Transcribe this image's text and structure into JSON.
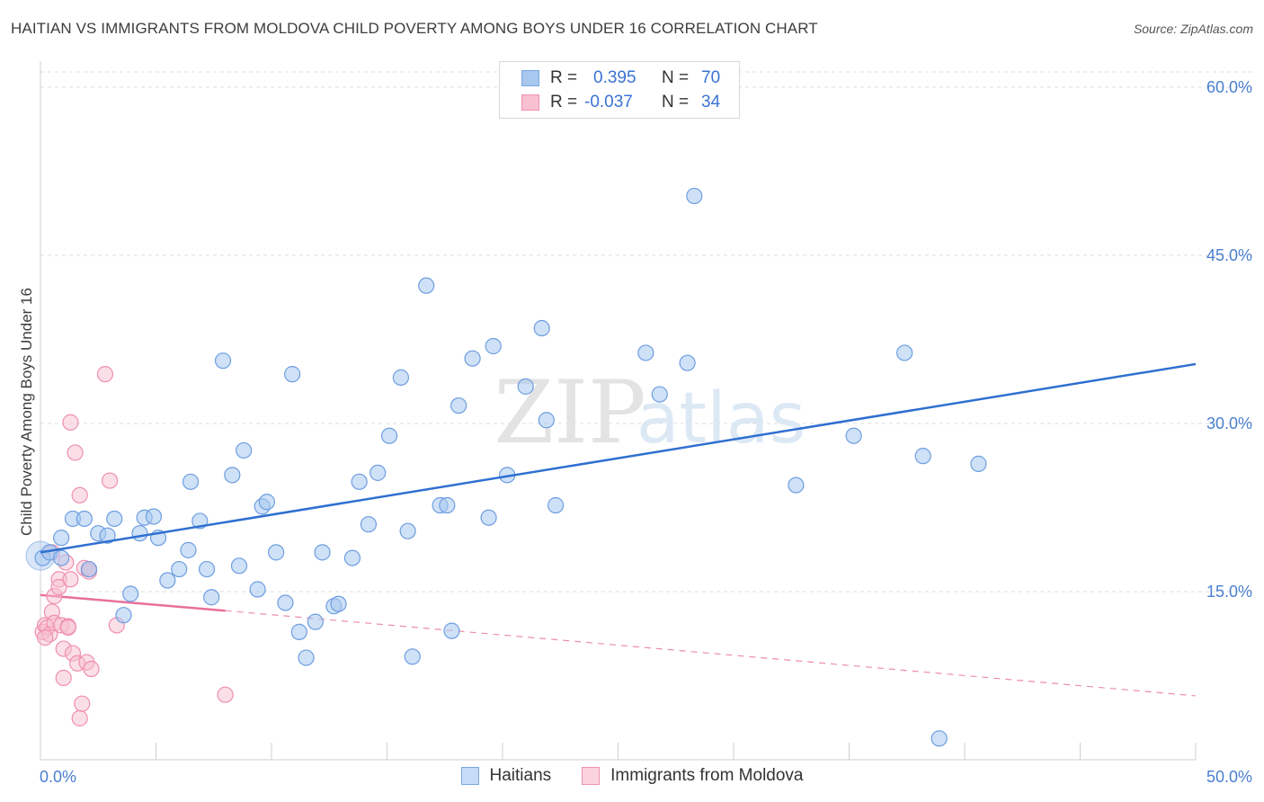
{
  "title": "HAITIAN VS IMMIGRANTS FROM MOLDOVA CHILD POVERTY AMONG BOYS UNDER 16 CORRELATION CHART",
  "source": "Source: ZipAtlas.com",
  "watermark": {
    "zip": "ZIP",
    "atlas": "atlas"
  },
  "legend": {
    "rows": [
      {
        "r_label": "R =",
        "r_value": "0.395",
        "n_label": "N =",
        "n_value": "70",
        "color": "#a8c8f0",
        "border": "#7aa6e0"
      },
      {
        "r_label": "R =",
        "r_value": "-0.037",
        "n_label": "N =",
        "n_value": "34",
        "color": "#f8c0d0",
        "border": "#f090b0"
      }
    ]
  },
  "bottom_legend": [
    {
      "label": "Haitians",
      "color": "#c6dbf7",
      "border": "#7aa6e0"
    },
    {
      "label": "Immigrants from Moldova",
      "color": "#fbd3de",
      "border": "#f090b0"
    }
  ],
  "chart_data": {
    "type": "scatter",
    "title": "HAITIAN VS IMMIGRANTS FROM MOLDOVA CHILD POVERTY AMONG BOYS UNDER 16 CORRELATION CHART",
    "xlabel": "",
    "ylabel": "Child Poverty Among Boys Under 16",
    "xlim": [
      0,
      50
    ],
    "ylim": [
      0,
      60
    ],
    "x_tick_labels": [
      "0.0%",
      "50.0%"
    ],
    "y_ticks": [
      15,
      30,
      45,
      60
    ],
    "y_tick_labels": [
      "15.0%",
      "30.0%",
      "45.0%",
      "60.0%"
    ],
    "grid": true,
    "series": [
      {
        "name": "Haitians",
        "color": "#a8c8f0",
        "stroke": "#6d9ee0",
        "trend": {
          "x": [
            0,
            50
          ],
          "y": [
            18.5,
            35.3
          ],
          "color": "#2f6fd0",
          "style": "solid"
        },
        "points": [
          [
            0.1,
            18.0
          ],
          [
            0.4,
            18.5
          ],
          [
            0.9,
            18.0
          ],
          [
            0.9,
            19.8
          ],
          [
            1.4,
            21.5
          ],
          [
            1.9,
            21.5
          ],
          [
            2.1,
            17.0
          ],
          [
            2.5,
            20.2
          ],
          [
            2.9,
            20.0
          ],
          [
            3.2,
            21.5
          ],
          [
            3.6,
            12.9
          ],
          [
            3.9,
            14.8
          ],
          [
            4.3,
            20.2
          ],
          [
            4.5,
            21.6
          ],
          [
            4.9,
            21.7
          ],
          [
            5.1,
            19.8
          ],
          [
            5.5,
            16.0
          ],
          [
            6.0,
            17.0
          ],
          [
            6.4,
            18.7
          ],
          [
            6.5,
            24.8
          ],
          [
            6.9,
            21.3
          ],
          [
            7.2,
            17.0
          ],
          [
            7.4,
            14.5
          ],
          [
            7.9,
            35.6
          ],
          [
            8.3,
            25.4
          ],
          [
            8.6,
            17.3
          ],
          [
            8.8,
            27.6
          ],
          [
            9.4,
            15.2
          ],
          [
            9.6,
            22.6
          ],
          [
            9.8,
            23.0
          ],
          [
            10.2,
            18.5
          ],
          [
            10.6,
            14.0
          ],
          [
            10.9,
            34.4
          ],
          [
            11.2,
            11.4
          ],
          [
            11.5,
            9.1
          ],
          [
            11.9,
            12.3
          ],
          [
            12.2,
            18.5
          ],
          [
            12.7,
            13.7
          ],
          [
            12.9,
            13.9
          ],
          [
            13.5,
            18.0
          ],
          [
            13.8,
            24.8
          ],
          [
            14.2,
            21.0
          ],
          [
            14.6,
            25.6
          ],
          [
            15.1,
            28.9
          ],
          [
            15.6,
            34.1
          ],
          [
            15.9,
            20.4
          ],
          [
            16.1,
            9.2
          ],
          [
            16.7,
            42.3
          ],
          [
            17.3,
            22.7
          ],
          [
            17.6,
            22.7
          ],
          [
            17.8,
            11.5
          ],
          [
            18.1,
            31.6
          ],
          [
            18.7,
            35.8
          ],
          [
            19.4,
            21.6
          ],
          [
            19.6,
            36.9
          ],
          [
            20.2,
            25.4
          ],
          [
            21.0,
            33.3
          ],
          [
            21.7,
            38.5
          ],
          [
            21.9,
            30.3
          ],
          [
            22.3,
            22.7
          ],
          [
            26.2,
            36.3
          ],
          [
            26.8,
            32.6
          ],
          [
            28.0,
            35.4
          ],
          [
            28.3,
            50.3
          ],
          [
            32.7,
            24.5
          ],
          [
            35.2,
            28.9
          ],
          [
            37.4,
            36.3
          ],
          [
            38.2,
            27.1
          ],
          [
            38.9,
            1.9
          ],
          [
            40.6,
            26.4
          ]
        ]
      },
      {
        "name": "Immigrants from Moldova",
        "color": "#f8c0d0",
        "stroke": "#ef8fae",
        "trend": {
          "x": [
            0,
            8
          ],
          "y": [
            14.7,
            13.3
          ],
          "color": "#e8709a",
          "style": "solid",
          "extended": {
            "x": [
              8,
              50
            ],
            "y": [
              13.3,
              5.7
            ],
            "style": "dashed"
          }
        },
        "points": [
          [
            0.1,
            11.4
          ],
          [
            0.2,
            12.0
          ],
          [
            0.3,
            11.8
          ],
          [
            0.4,
            11.2
          ],
          [
            0.5,
            13.2
          ],
          [
            0.6,
            12.2
          ],
          [
            0.6,
            14.6
          ],
          [
            0.8,
            16.1
          ],
          [
            0.8,
            15.4
          ],
          [
            0.9,
            12.0
          ],
          [
            1.0,
            9.9
          ],
          [
            1.0,
            7.3
          ],
          [
            1.1,
            17.6
          ],
          [
            1.2,
            11.9
          ],
          [
            1.2,
            11.8
          ],
          [
            1.3,
            16.1
          ],
          [
            1.3,
            30.1
          ],
          [
            1.4,
            9.5
          ],
          [
            1.5,
            27.4
          ],
          [
            1.6,
            8.6
          ],
          [
            1.7,
            3.7
          ],
          [
            1.7,
            23.6
          ],
          [
            1.8,
            5.0
          ],
          [
            1.9,
            17.1
          ],
          [
            2.0,
            8.7
          ],
          [
            2.1,
            16.8
          ],
          [
            2.1,
            17.0
          ],
          [
            2.2,
            8.1
          ],
          [
            2.8,
            34.4
          ],
          [
            3.0,
            24.9
          ],
          [
            3.3,
            12.0
          ],
          [
            0.2,
            10.9
          ],
          [
            0.5,
            18.5
          ],
          [
            8.0,
            5.8
          ]
        ]
      }
    ]
  }
}
